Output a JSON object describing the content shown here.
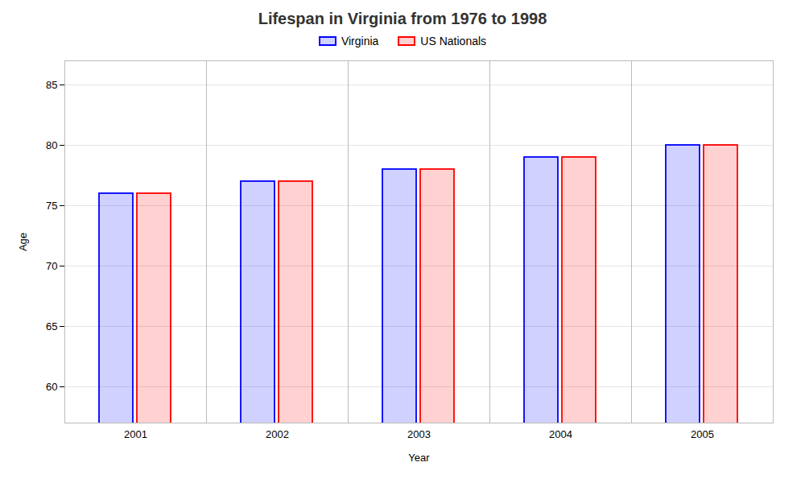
{
  "chart_data": {
    "type": "bar",
    "title": "Lifespan in Virginia from 1976 to 1998",
    "xlabel": "Year",
    "ylabel": "Age",
    "categories": [
      "2001",
      "2002",
      "2003",
      "2004",
      "2005"
    ],
    "series": [
      {
        "name": "Virginia",
        "color": "#0000ff",
        "values": [
          76,
          77,
          78,
          79,
          80
        ]
      },
      {
        "name": "US Nationals",
        "color": "#ff0000",
        "values": [
          76,
          77,
          78,
          79,
          80
        ]
      }
    ],
    "ylim": [
      57,
      87
    ],
    "yticks": [
      60,
      65,
      70,
      75,
      80,
      85
    ],
    "grid": true,
    "legend": "top"
  }
}
